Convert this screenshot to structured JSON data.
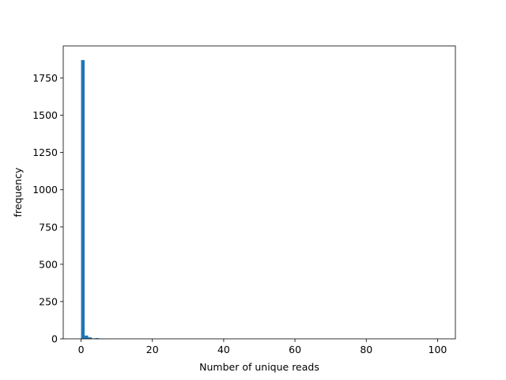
{
  "chart_data": {
    "type": "bar",
    "title": "",
    "xlabel": "Number of unique reads",
    "ylabel": "frequency",
    "xlim": [
      -5,
      105
    ],
    "ylim": [
      0,
      1965
    ],
    "xticks": [
      0,
      20,
      40,
      60,
      80,
      100
    ],
    "yticks": [
      0,
      250,
      500,
      750,
      1000,
      1250,
      1500,
      1750
    ],
    "grid": false,
    "legend": "none",
    "bar_color": "#1f77b4",
    "bin_width": 1,
    "bins": [
      {
        "x0": 0,
        "x1": 1,
        "count": 1870
      },
      {
        "x0": 1,
        "x1": 2,
        "count": 22
      },
      {
        "x0": 2,
        "x1": 3,
        "count": 10
      },
      {
        "x0": 3,
        "x1": 4,
        "count": 3
      },
      {
        "x0": 4,
        "x1": 5,
        "count": 5
      },
      {
        "x0": 5,
        "x1": 6,
        "count": 1
      },
      {
        "x0": 6,
        "x1": 7,
        "count": 1
      },
      {
        "x0": 99,
        "x1": 100,
        "count": 1
      }
    ]
  }
}
